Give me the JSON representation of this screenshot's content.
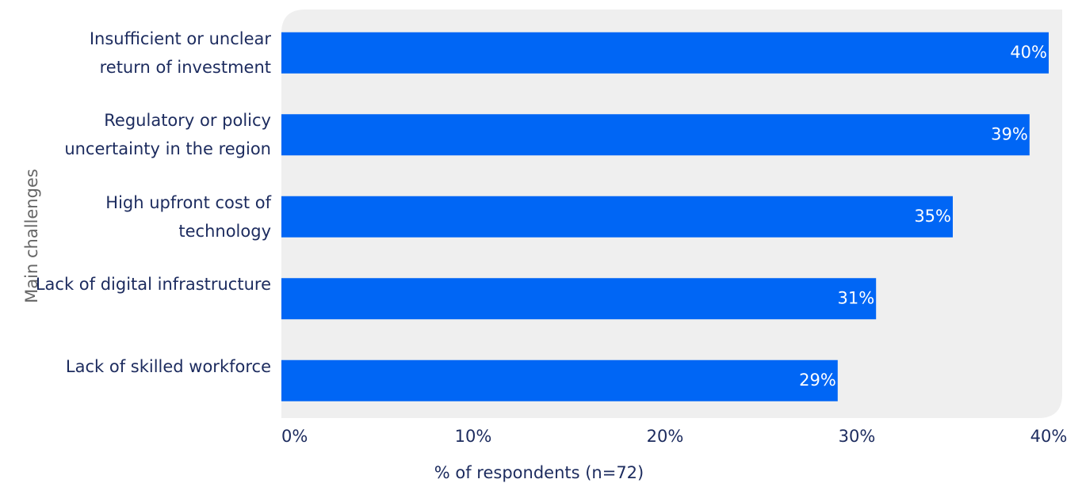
{
  "chart_data": {
    "type": "bar",
    "orientation": "horizontal",
    "categories": [
      "Insufficient or unclear return of investment",
      "Regulatory or policy uncertainty in the region",
      "High upfront cost of technology",
      "Lack of digital infrastructure",
      "Lack of skilled workforce"
    ],
    "values": [
      40,
      39,
      35,
      31,
      29
    ],
    "value_labels": [
      "40%",
      "39%",
      "35%",
      "31%",
      "29%"
    ],
    "color": "#0066f5",
    "xlim": [
      0,
      40
    ],
    "xticks": [
      {
        "value": 0,
        "label": "0%"
      },
      {
        "value": 10,
        "label": "10%"
      },
      {
        "value": 20,
        "label": "20%"
      },
      {
        "value": 30,
        "label": "30%"
      },
      {
        "value": 40,
        "label": "40%"
      }
    ],
    "xlabel": "% of respondents (n=72)",
    "ylabel": "Main challenges"
  }
}
